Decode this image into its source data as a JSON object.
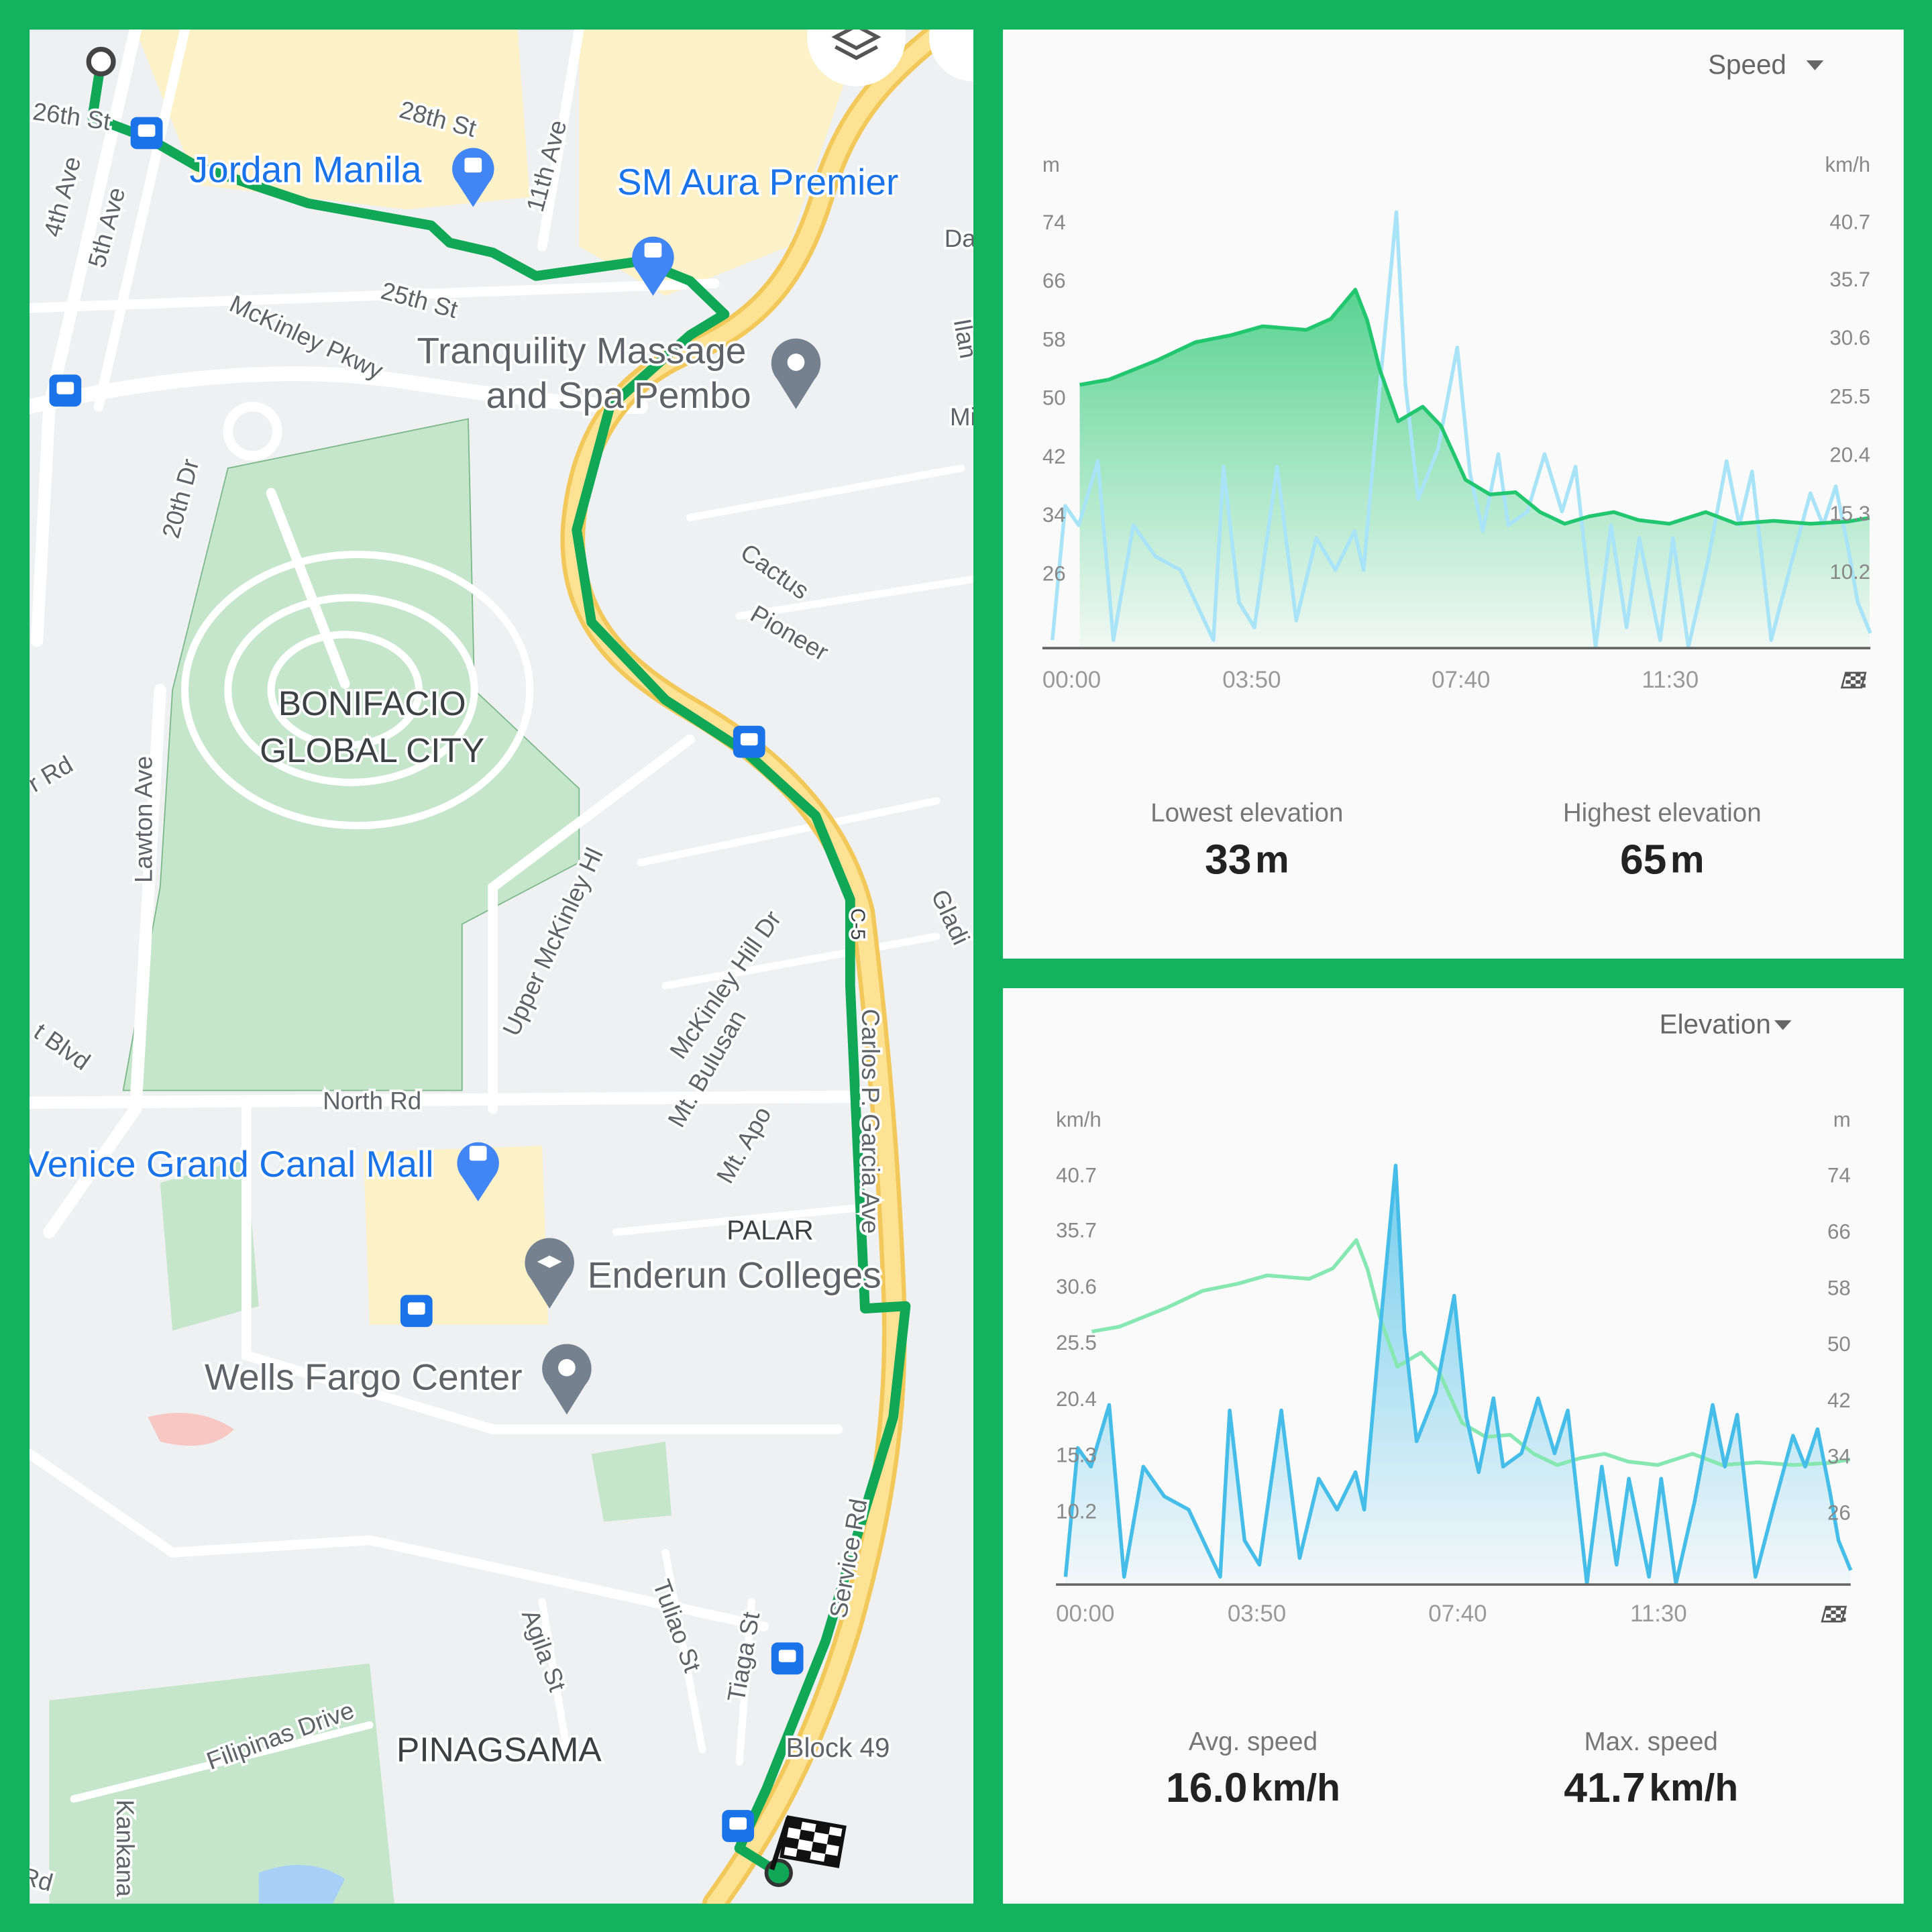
{
  "map": {
    "labels": [
      "26th St",
      "28th St",
      "Jordan Manila",
      "11th Ave",
      "SM Aura Premier",
      "4th Ave",
      "5th Ave",
      "25th St",
      "McKinley Pkwy",
      "Tranquility Massage",
      "and Spa Pembo",
      "20th Dr",
      "Cactus",
      "Pioneer",
      "BONIFACIO",
      "GLOBAL CITY",
      "Lawton Ave",
      "Upper McKinley Hl",
      "McKinley Hill Dr",
      "Mt. Bulusan",
      "Mt. Apo",
      "C-5",
      "Carlos P. Garcia Ave",
      "North Rd",
      "Venice Grand Canal Mall",
      "PALAR",
      "Enderun Colleges",
      "Wells Fargo Center",
      "Agila St",
      "Tuliao St",
      "Tiaga St",
      "Service Rd",
      "Block 49",
      "Filipinas Drive",
      "PINAGSAMA",
      "Da",
      "Ilan",
      "Mi",
      "r Rd",
      "t Blvd",
      "Gladi",
      "Kankana",
      "Rd"
    ]
  },
  "chart_data": [
    {
      "type": "line",
      "selector": "Speed",
      "y_unit": "m",
      "y2_unit": "km/h",
      "xlim": [
        0,
        910
      ],
      "xticks": [
        {
          "value": 0,
          "label": "00:00"
        },
        {
          "value": 230,
          "label": "03:50"
        },
        {
          "value": 460,
          "label": "07:40"
        },
        {
          "value": 690,
          "label": "11:30"
        }
      ],
      "ylim": [
        16,
        80
      ],
      "yticks": [
        26,
        34,
        42,
        50,
        58,
        66,
        74
      ],
      "y2lim": [
        3.7,
        44.5
      ],
      "y2ticks": [
        10.2,
        15.3,
        20.4,
        25.5,
        30.6,
        35.7,
        40.7
      ],
      "series": [
        {
          "axis": "y",
          "color": "#22c66e",
          "fill": true,
          "x": [
            41,
            73,
            127,
            168,
            208,
            242,
            290,
            317,
            344,
            357,
            371,
            391,
            418,
            438,
            465,
            492,
            520,
            547,
            574,
            601,
            628,
            655,
            689,
            729,
            763,
            804,
            844,
            885,
            909
          ],
          "values": [
            52,
            52.7,
            55.4,
            57.8,
            58.8,
            60,
            59.5,
            61,
            65,
            60.8,
            54,
            47,
            49,
            46.4,
            39,
            37,
            37.3,
            34.6,
            33,
            34,
            34.6,
            33.5,
            33,
            34.6,
            33,
            33.4,
            33,
            33.3,
            33.8
          ]
        },
        {
          "axis": "y2",
          "color": "#a9e3f7",
          "fill": false,
          "x": [
            11,
            25,
            40,
            61,
            78,
            100,
            124,
            152,
            188,
            199,
            216,
            233,
            258,
            279,
            301,
            322,
            343,
            353,
            371,
            389,
            399,
            413,
            435,
            456,
            470,
            484,
            501,
            512,
            533,
            552,
            571,
            586,
            608,
            625,
            642,
            656,
            679,
            693,
            710,
            731,
            752,
            766,
            780,
            801,
            823,
            844,
            858,
            872,
            886,
            896,
            910
          ],
          "values": [
            4.4,
            16.1,
            14.4,
            20.0,
            4.4,
            14.4,
            11.7,
            10.5,
            4.4,
            19.5,
            7.7,
            5.5,
            19.5,
            6.1,
            13.3,
            10.5,
            13.9,
            10.5,
            26.7,
            41.7,
            26.7,
            16.7,
            21.1,
            29.9,
            18.9,
            13.9,
            20.6,
            14.4,
            15.6,
            20.6,
            15.6,
            19.5,
            3.8,
            14.4,
            5.5,
            13.3,
            4.4,
            13.3,
            3.8,
            11.1,
            20.0,
            14.4,
            19.1,
            4.4,
            11.1,
            17.2,
            14.4,
            17.8,
            12.2,
            7.7,
            5.0
          ]
        }
      ],
      "stats": [
        {
          "label": "Lowest elevation",
          "value": "33",
          "unit": "m"
        },
        {
          "label": "Highest elevation",
          "value": "65",
          "unit": "m"
        }
      ]
    },
    {
      "type": "line",
      "selector": "Elevation",
      "y_unit": "km/h",
      "y2_unit": "m",
      "xlim": [
        0,
        910
      ],
      "xticks": [
        {
          "value": 0,
          "label": "00:00"
        },
        {
          "value": 230,
          "label": "03:50"
        },
        {
          "value": 460,
          "label": "07:40"
        },
        {
          "value": 690,
          "label": "11:30"
        }
      ],
      "ylim": [
        3.7,
        44.5
      ],
      "yticks": [
        10.2,
        15.3,
        20.4,
        25.5,
        30.6,
        35.7,
        40.7
      ],
      "y2lim": [
        16,
        80
      ],
      "y2ticks": [
        26,
        34,
        42,
        50,
        58,
        66,
        74
      ],
      "series": [
        {
          "axis": "y",
          "color": "#45bde8",
          "fill": true,
          "x": [
            11,
            25,
            40,
            61,
            78,
            100,
            124,
            152,
            188,
            199,
            216,
            233,
            258,
            279,
            301,
            322,
            343,
            353,
            371,
            389,
            399,
            413,
            435,
            456,
            470,
            484,
            501,
            512,
            533,
            552,
            571,
            586,
            608,
            625,
            642,
            656,
            679,
            693,
            710,
            731,
            752,
            766,
            780,
            801,
            823,
            844,
            858,
            872,
            886,
            896,
            910
          ],
          "values": [
            4.4,
            16.1,
            14.4,
            20.0,
            4.4,
            14.4,
            11.7,
            10.5,
            4.4,
            19.5,
            7.7,
            5.5,
            19.5,
            6.1,
            13.3,
            10.5,
            13.9,
            10.5,
            26.7,
            41.7,
            26.7,
            16.7,
            21.1,
            29.9,
            18.9,
            13.9,
            20.6,
            14.4,
            15.6,
            20.6,
            15.6,
            19.5,
            3.8,
            14.4,
            5.5,
            13.3,
            4.4,
            13.3,
            3.8,
            11.1,
            20.0,
            14.4,
            19.1,
            4.4,
            11.1,
            17.2,
            14.4,
            17.8,
            12.2,
            7.7,
            5.0
          ]
        },
        {
          "axis": "y2",
          "color": "#86e8b0",
          "fill": false,
          "x": [
            41,
            73,
            127,
            168,
            208,
            242,
            290,
            317,
            344,
            357,
            371,
            391,
            418,
            438,
            465,
            492,
            520,
            547,
            574,
            601,
            628,
            655,
            689,
            729,
            763,
            804,
            844,
            885,
            909
          ],
          "values": [
            52,
            52.7,
            55.4,
            57.8,
            58.8,
            60,
            59.5,
            61,
            65,
            60.8,
            54,
            47,
            49,
            46.4,
            39,
            37,
            37.3,
            34.6,
            33,
            34,
            34.6,
            33.5,
            33,
            34.6,
            33,
            33.4,
            33,
            33.3,
            33.8
          ]
        }
      ],
      "stats": [
        {
          "label": "Avg. speed",
          "value": "16.0",
          "unit": "km/h"
        },
        {
          "label": "Max. speed",
          "value": "41.7",
          "unit": "km/h"
        }
      ]
    }
  ]
}
